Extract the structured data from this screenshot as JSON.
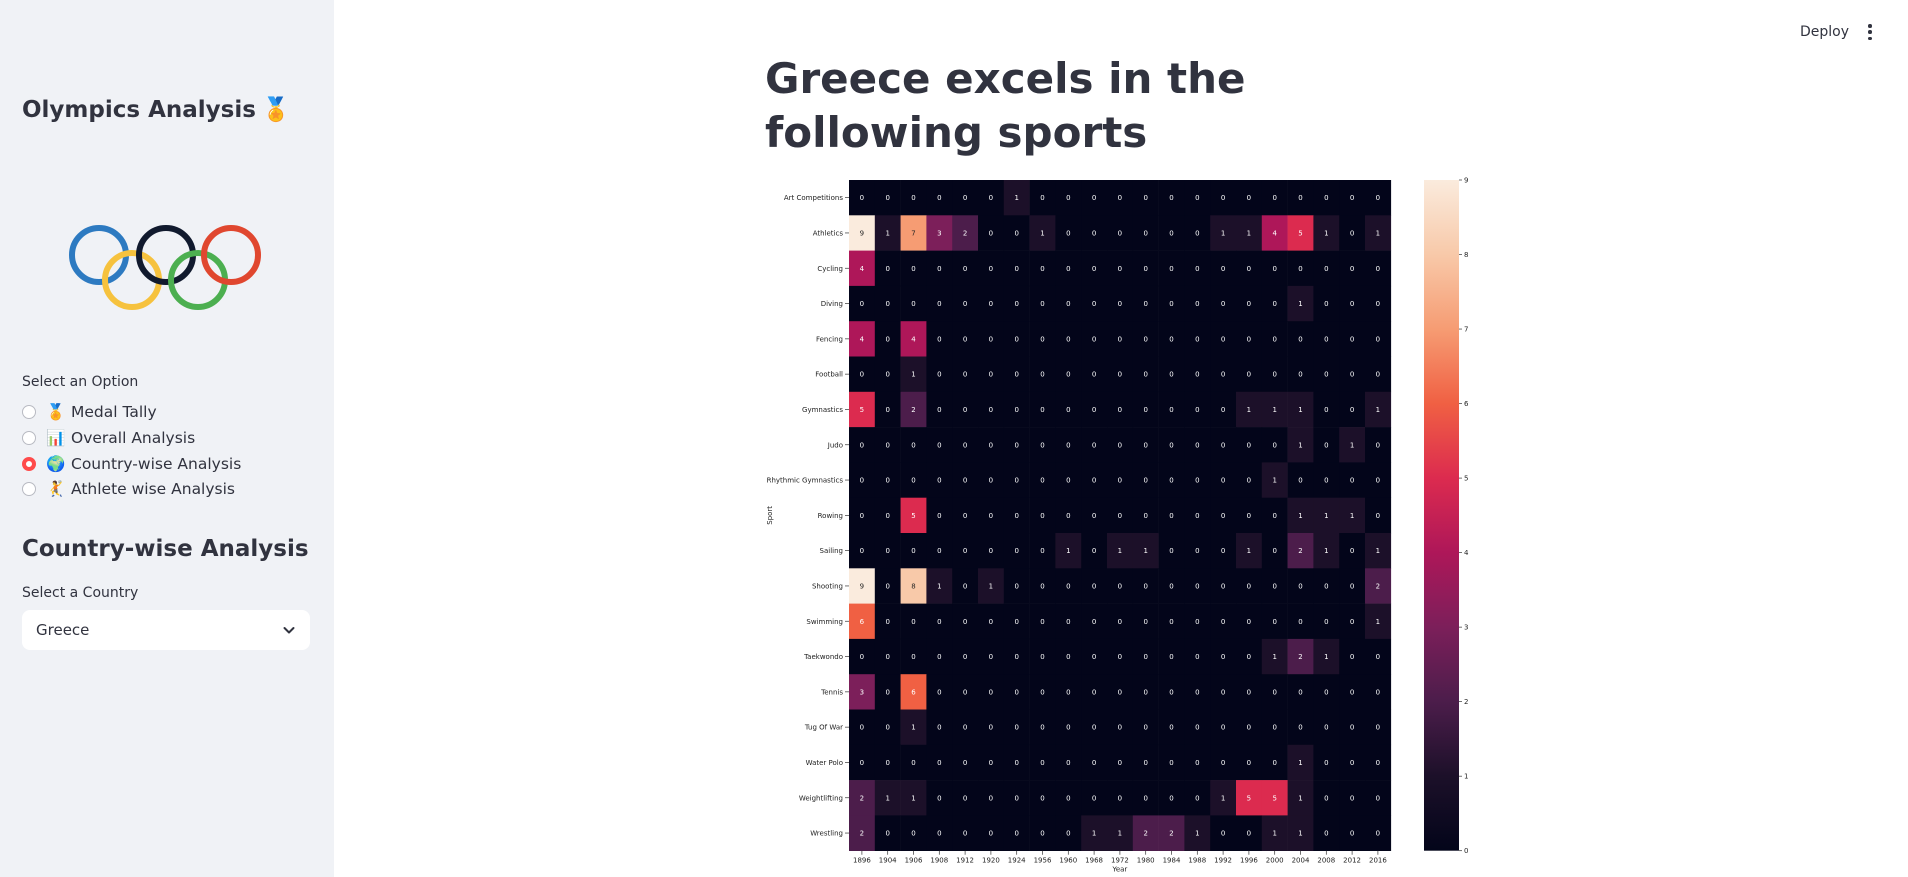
{
  "sidebar": {
    "title": "Olympics Analysis",
    "title_icon": "medal-icon",
    "logo": "olympic-rings",
    "radio_label": "Select an Option",
    "options": [
      {
        "icon": "🏅",
        "label": "Medal Tally",
        "selected": false
      },
      {
        "icon": "📊",
        "label": "Overall Analysis",
        "selected": false
      },
      {
        "icon": "🌍",
        "label": "Country-wise Analysis",
        "selected": true
      },
      {
        "icon": "🤾",
        "label": "Athlete wise Analysis",
        "selected": false
      }
    ],
    "section_title": "Country-wise Analysis",
    "select_label": "Select a Country",
    "select_value": "Greece"
  },
  "header": {
    "deploy_label": "Deploy",
    "menu_icon": "kebab-menu-icon"
  },
  "main": {
    "title": "Greece excels in the following sports"
  },
  "colors": {
    "accent": "#ff4b4b",
    "sidebar_bg": "#f0f2f6",
    "text": "#31333f"
  },
  "chart_data": {
    "type": "heatmap",
    "xlabel": "Year",
    "ylabel": "Sport",
    "x": [
      "1896",
      "1904",
      "1906",
      "1908",
      "1912",
      "1920",
      "1924",
      "1956",
      "1960",
      "1968",
      "1972",
      "1980",
      "1984",
      "1988",
      "1992",
      "1996",
      "2000",
      "2004",
      "2008",
      "2012",
      "2016"
    ],
    "y": [
      "Art Competitions",
      "Athletics",
      "Cycling",
      "Diving",
      "Fencing",
      "Football",
      "Gymnastics",
      "Judo",
      "Rhythmic Gymnastics",
      "Rowing",
      "Sailing",
      "Shooting",
      "Swimming",
      "Taekwondo",
      "Tennis",
      "Tug Of War",
      "Water Polo",
      "Weightlifting",
      "Wrestling"
    ],
    "values": [
      [
        0,
        0,
        0,
        0,
        0,
        0,
        1,
        0,
        0,
        0,
        0,
        0,
        0,
        0,
        0,
        0,
        0,
        0,
        0,
        0,
        0
      ],
      [
        9,
        1,
        7,
        3,
        2,
        0,
        0,
        1,
        0,
        0,
        0,
        0,
        0,
        0,
        1,
        1,
        4,
        5,
        1,
        0,
        1
      ],
      [
        4,
        0,
        0,
        0,
        0,
        0,
        0,
        0,
        0,
        0,
        0,
        0,
        0,
        0,
        0,
        0,
        0,
        0,
        0,
        0,
        0
      ],
      [
        0,
        0,
        0,
        0,
        0,
        0,
        0,
        0,
        0,
        0,
        0,
        0,
        0,
        0,
        0,
        0,
        0,
        1,
        0,
        0,
        0
      ],
      [
        4,
        0,
        4,
        0,
        0,
        0,
        0,
        0,
        0,
        0,
        0,
        0,
        0,
        0,
        0,
        0,
        0,
        0,
        0,
        0,
        0
      ],
      [
        0,
        0,
        1,
        0,
        0,
        0,
        0,
        0,
        0,
        0,
        0,
        0,
        0,
        0,
        0,
        0,
        0,
        0,
        0,
        0,
        0
      ],
      [
        5,
        0,
        2,
        0,
        0,
        0,
        0,
        0,
        0,
        0,
        0,
        0,
        0,
        0,
        0,
        1,
        1,
        1,
        0,
        0,
        1
      ],
      [
        0,
        0,
        0,
        0,
        0,
        0,
        0,
        0,
        0,
        0,
        0,
        0,
        0,
        0,
        0,
        0,
        0,
        1,
        0,
        1,
        0
      ],
      [
        0,
        0,
        0,
        0,
        0,
        0,
        0,
        0,
        0,
        0,
        0,
        0,
        0,
        0,
        0,
        0,
        1,
        0,
        0,
        0,
        0
      ],
      [
        0,
        0,
        5,
        0,
        0,
        0,
        0,
        0,
        0,
        0,
        0,
        0,
        0,
        0,
        0,
        0,
        0,
        1,
        1,
        1,
        0
      ],
      [
        0,
        0,
        0,
        0,
        0,
        0,
        0,
        0,
        1,
        0,
        1,
        1,
        0,
        0,
        0,
        1,
        0,
        2,
        1,
        0,
        1
      ],
      [
        9,
        0,
        8,
        1,
        0,
        1,
        0,
        0,
        0,
        0,
        0,
        0,
        0,
        0,
        0,
        0,
        0,
        0,
        0,
        0,
        2
      ],
      [
        6,
        0,
        0,
        0,
        0,
        0,
        0,
        0,
        0,
        0,
        0,
        0,
        0,
        0,
        0,
        0,
        0,
        0,
        0,
        0,
        1
      ],
      [
        0,
        0,
        0,
        0,
        0,
        0,
        0,
        0,
        0,
        0,
        0,
        0,
        0,
        0,
        0,
        0,
        1,
        2,
        1,
        0,
        0
      ],
      [
        3,
        0,
        6,
        0,
        0,
        0,
        0,
        0,
        0,
        0,
        0,
        0,
        0,
        0,
        0,
        0,
        0,
        0,
        0,
        0,
        0
      ],
      [
        0,
        0,
        1,
        0,
        0,
        0,
        0,
        0,
        0,
        0,
        0,
        0,
        0,
        0,
        0,
        0,
        0,
        0,
        0,
        0,
        0
      ],
      [
        0,
        0,
        0,
        0,
        0,
        0,
        0,
        0,
        0,
        0,
        0,
        0,
        0,
        0,
        0,
        0,
        0,
        1,
        0,
        0,
        0
      ],
      [
        2,
        1,
        1,
        0,
        0,
        0,
        0,
        0,
        0,
        0,
        0,
        0,
        0,
        0,
        1,
        5,
        5,
        1,
        0,
        0,
        0
      ],
      [
        2,
        0,
        0,
        0,
        0,
        0,
        0,
        0,
        0,
        1,
        1,
        2,
        2,
        1,
        0,
        0,
        1,
        1,
        0,
        0,
        0
      ]
    ],
    "colorbar": {
      "range": [
        0,
        9
      ],
      "ticks": [
        "0",
        "1",
        "2",
        "3",
        "4",
        "5",
        "6",
        "7",
        "8",
        "9"
      ],
      "colormap": "rocket"
    }
  }
}
